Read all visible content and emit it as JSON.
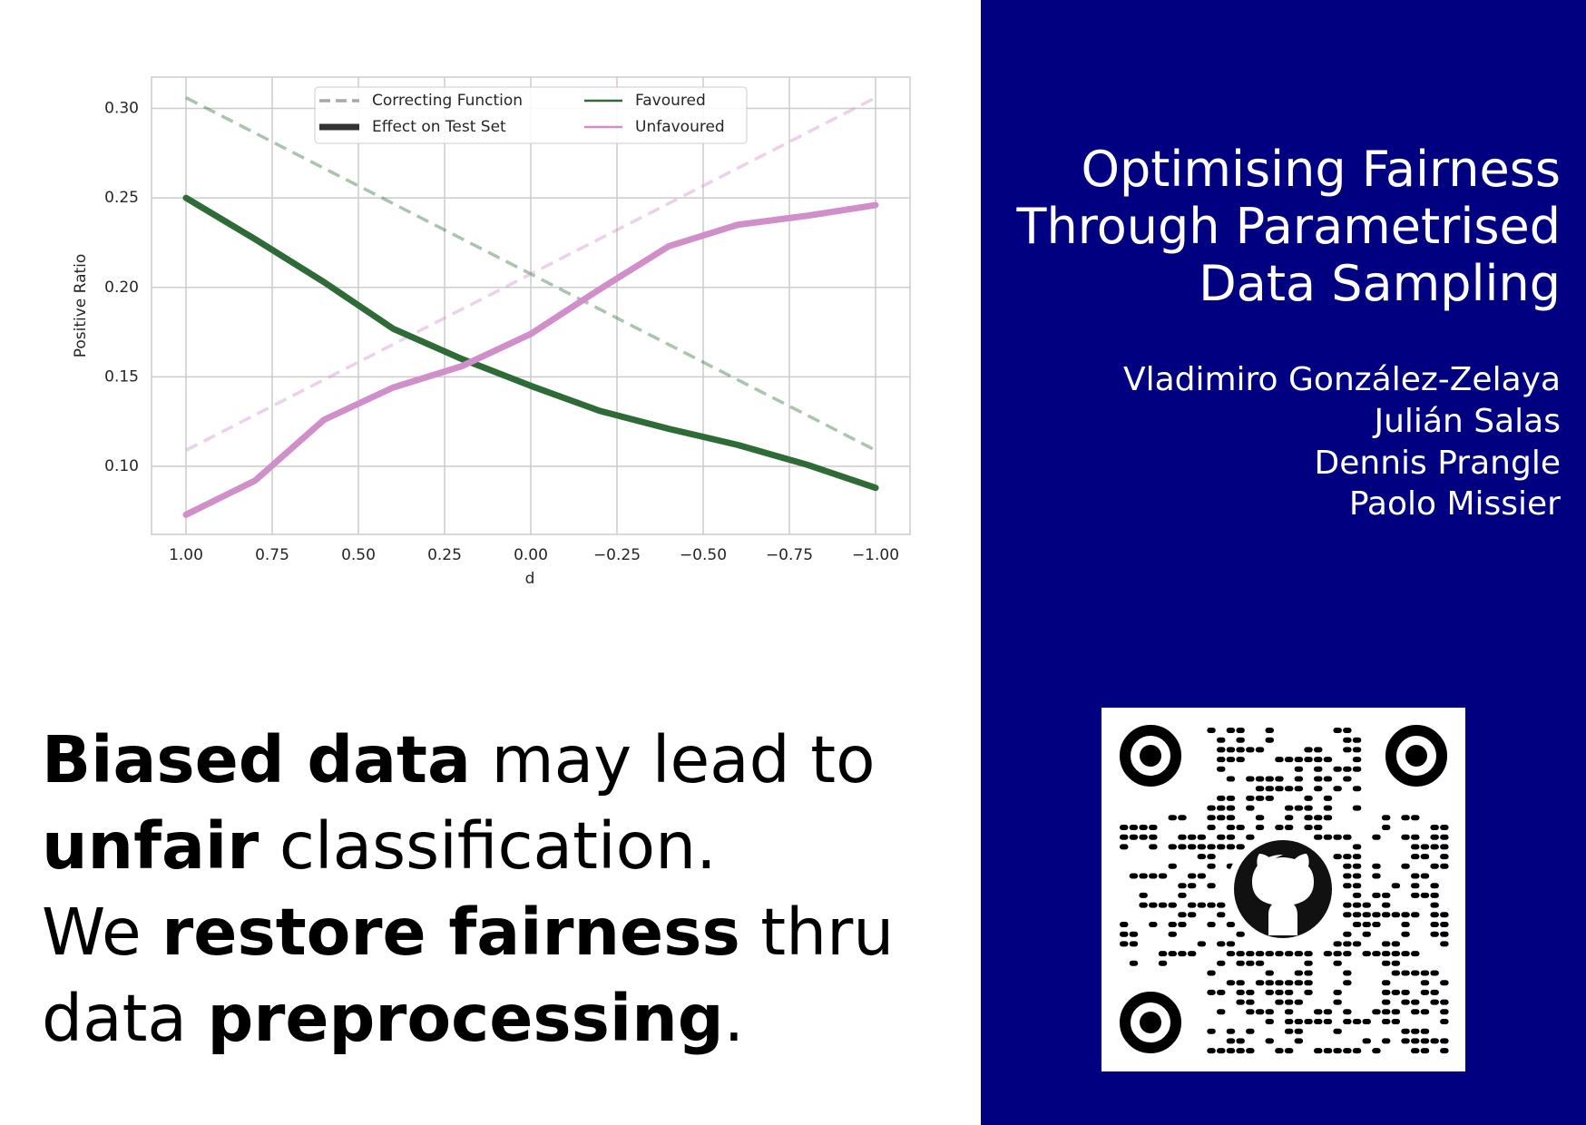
{
  "chart_data": {
    "type": "line",
    "y_label": "Positive Ratio",
    "x_label": "d",
    "x": [
      1.0,
      0.8,
      0.6,
      0.4,
      0.2,
      0.0,
      -0.2,
      -0.4,
      -0.6,
      -0.8,
      -1.0
    ],
    "xlim": [
      1.1,
      -1.1
    ],
    "ylim": [
      0.062,
      0.3175
    ],
    "xticks": [
      {
        "value": 1,
        "label": "1.00"
      },
      {
        "value": 0.75,
        "label": "0.75"
      },
      {
        "value": 0.5,
        "label": "0.50"
      },
      {
        "value": 0.25,
        "label": "0.25"
      },
      {
        "value": 0,
        "label": "0.00"
      },
      {
        "value": -0.25,
        "label": "−0.25"
      },
      {
        "value": -0.5,
        "label": "−0.50"
      },
      {
        "value": -0.75,
        "label": "−0.75"
      },
      {
        "value": -1,
        "label": "−1.00"
      }
    ],
    "yticks": [
      {
        "value": 0.1,
        "label": "0.10"
      },
      {
        "value": 0.15,
        "label": "0.15"
      },
      {
        "value": 0.2,
        "label": "0.20"
      },
      {
        "value": 0.25,
        "label": "0.25"
      },
      {
        "value": 0.3,
        "label": "0.30"
      }
    ],
    "grid": true,
    "line_styles": {
      "correcting": "Correcting Function",
      "test": "Effect on Test Set"
    },
    "series": [
      {
        "name": "Favoured",
        "color": "#2e6b37",
        "values": [
          0.25,
          0.227,
          0.203,
          0.177,
          0.16,
          0.145,
          0.131,
          0.121,
          0.112,
          0.101,
          0.088
        ],
        "correcting": [
          0.306,
          0.2863,
          0.2666,
          0.2469,
          0.2272,
          0.2075,
          0.1878,
          0.1681,
          0.1484,
          0.1287,
          0.109
        ]
      },
      {
        "name": "Unfavoured",
        "color": "#d08fc8",
        "values": [
          0.073,
          0.092,
          0.126,
          0.144,
          0.156,
          0.174,
          0.199,
          0.223,
          0.235,
          0.24,
          0.246
        ],
        "correcting": [
          0.109,
          0.1287,
          0.1484,
          0.1681,
          0.1878,
          0.2075,
          0.2272,
          0.2469,
          0.2666,
          0.2863,
          0.306
        ]
      }
    ]
  },
  "headline": [
    [
      {
        "text": "Biased data",
        "bold": true
      },
      {
        "text": " may lead to",
        "bold": false
      }
    ],
    [
      {
        "text": "unfair",
        "bold": true
      },
      {
        "text": " classification.",
        "bold": false
      }
    ],
    [
      {
        "text": "We ",
        "bold": false
      },
      {
        "text": "restore fairness",
        "bold": true
      },
      {
        "text": " thru",
        "bold": false
      }
    ],
    [
      {
        "text": "data ",
        "bold": false
      },
      {
        "text": "preprocessing",
        "bold": true
      },
      {
        "text": ".",
        "bold": false
      }
    ]
  ],
  "title": [
    "Optimising Fairness",
    "Through Parametrised",
    "Data Sampling"
  ],
  "authors": [
    "Vladimiro González-Zelaya",
    "Julián Salas",
    "Dennis Prangle",
    "Paolo Missier"
  ]
}
